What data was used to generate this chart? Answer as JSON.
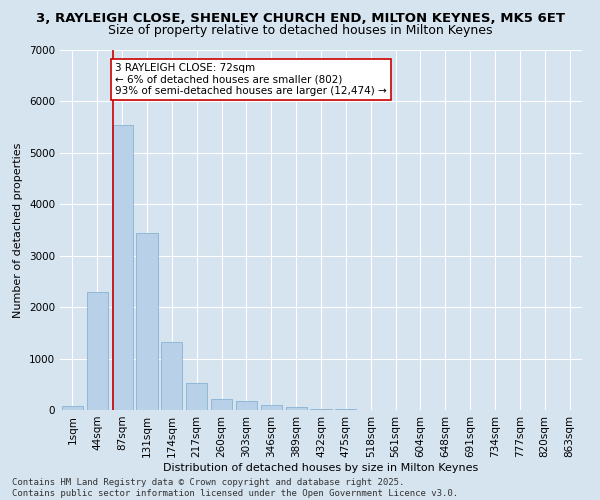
{
  "title_line1": "3, RAYLEIGH CLOSE, SHENLEY CHURCH END, MILTON KEYNES, MK5 6ET",
  "title_line2": "Size of property relative to detached houses in Milton Keynes",
  "xlabel": "Distribution of detached houses by size in Milton Keynes",
  "ylabel": "Number of detached properties",
  "categories": [
    "1sqm",
    "44sqm",
    "87sqm",
    "131sqm",
    "174sqm",
    "217sqm",
    "260sqm",
    "303sqm",
    "346sqm",
    "389sqm",
    "432sqm",
    "475sqm",
    "518sqm",
    "561sqm",
    "604sqm",
    "648sqm",
    "691sqm",
    "734sqm",
    "777sqm",
    "820sqm",
    "863sqm"
  ],
  "values": [
    70,
    2300,
    5550,
    3450,
    1320,
    530,
    215,
    175,
    95,
    55,
    25,
    10,
    5,
    2,
    1,
    0,
    0,
    0,
    0,
    0,
    0
  ],
  "bar_color": "#b8d0e8",
  "bar_edge_color": "#7aabcf",
  "vline_color": "#cc0000",
  "vline_pos": 1.63,
  "annotation_text": "3 RAYLEIGH CLOSE: 72sqm\n← 6% of detached houses are smaller (802)\n93% of semi-detached houses are larger (12,474) →",
  "annotation_box_facecolor": "#ffffff",
  "annotation_box_edgecolor": "#cc0000",
  "ylim": [
    0,
    7000
  ],
  "yticks": [
    0,
    1000,
    2000,
    3000,
    4000,
    5000,
    6000,
    7000
  ],
  "background_color": "#d6e4f0",
  "plot_bg_color": "#d6e4f0",
  "grid_color": "#ffffff",
  "footer_line1": "Contains HM Land Registry data © Crown copyright and database right 2025.",
  "footer_line2": "Contains public sector information licensed under the Open Government Licence v3.0.",
  "title_fontsize": 9.5,
  "subtitle_fontsize": 9,
  "axis_label_fontsize": 8,
  "tick_fontsize": 7.5,
  "annotation_fontsize": 7.5,
  "footer_fontsize": 6.5
}
